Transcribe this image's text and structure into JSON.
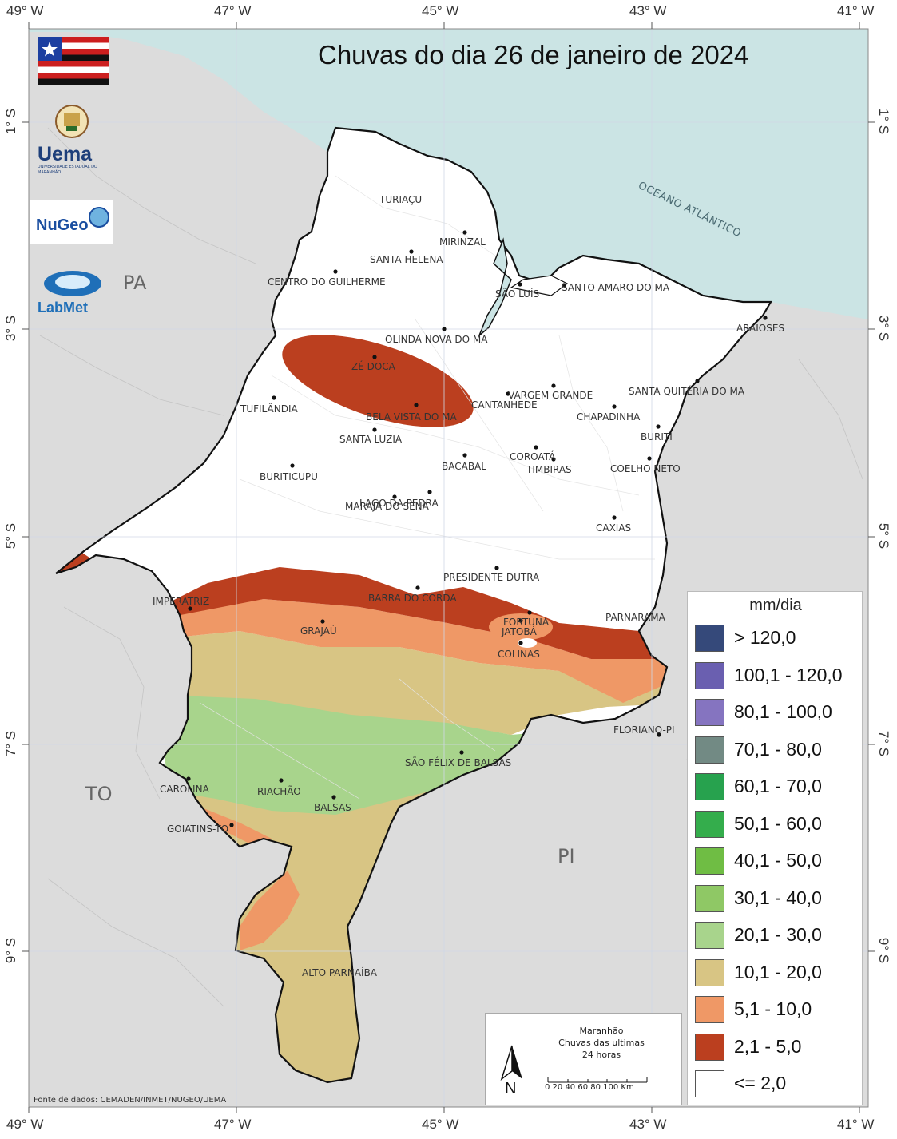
{
  "title": "Chuvas do dia 26 de janeiro de 2024",
  "coordinates": {
    "longitudes": [
      "49° W",
      "47° W",
      "45° W",
      "43° W",
      "41° W"
    ],
    "latitudes": [
      "1° S",
      "3° S",
      "5° S",
      "7° S",
      "9° S"
    ]
  },
  "region_labels": {
    "pa": "PA",
    "to": "TO",
    "pi": "PI"
  },
  "ocean_label": "OCEANO ATLÂNTICO",
  "cities": [
    "TURIAÇU",
    "MIRINZAL",
    "SANTA HELENA",
    "CENTRO DO GUILHERME",
    "SÃO LUÍS",
    "SANTO AMARO DO MA",
    "ARAIOSES",
    "OLINDA NOVA DO MA",
    "ZÉ DOCA",
    "VARGEM GRANDE",
    "CANTANHEDE",
    "SANTA QUITÉRIA DO MA",
    "TUFILÂNDIA",
    "BELA VISTA DO MA",
    "CHAPADINHA",
    "BURITI",
    "SANTA LUZIA",
    "COROATÁ",
    "BACABAL",
    "TIMBIRAS",
    "COELHO NETO",
    "BURITICUPU",
    "LAGO DA PEDRA",
    "MARAJÁ DO SENA",
    "CAXIAS",
    "PRESIDENTE DUTRA",
    "IMPERATRIZ",
    "BARRA DO CORDA",
    "PARNARAMA",
    "FORTUNA",
    "GRAJAÚ",
    "JATOBÁ",
    "COLINAS",
    "FLORIANO-PI",
    "SÃO FÉLIX DE BALSAS",
    "CAROLINA",
    "RIACHÃO",
    "BALSAS",
    "GOIATINS-TO",
    "ALTO PARNAÍBA"
  ],
  "legend": {
    "title": "mm/dia",
    "classes": [
      {
        "label": "> 120,0",
        "color": "#35497a"
      },
      {
        "label": "100,1 - 120,0",
        "color": "#6a5fb0"
      },
      {
        "label": "80,1 - 100,0",
        "color": "#8574c0"
      },
      {
        "label": "70,1 - 80,0",
        "color": "#728a84"
      },
      {
        "label": "60,1 - 70,0",
        "color": "#27a24e"
      },
      {
        "label": "50,1 - 60,0",
        "color": "#34ad4c"
      },
      {
        "label": "40,1 - 50,0",
        "color": "#6fbd44"
      },
      {
        "label": "30,1 - 40,0",
        "color": "#8fc865"
      },
      {
        "label": "20,1 - 30,0",
        "color": "#a8d48c"
      },
      {
        "label": "10,1 - 20,0",
        "color": "#d8c584"
      },
      {
        "label": "5,1 - 10,0",
        "color": "#ef9866"
      },
      {
        "label": "2,1 - 5,0",
        "color": "#bb3f1f"
      },
      {
        "label": "<= 2,0",
        "color": "#ffffff"
      }
    ]
  },
  "inset": {
    "line1": "Maranhão",
    "line2": "Chuvas das ultimas",
    "line3": "24 horas",
    "north": "N",
    "scale": "0  20  40  60  80 100 Km"
  },
  "logos": {
    "uema": "Uema",
    "uema_sub": "UNIVERSIDADE ESTADUAL DO MARANHÃO",
    "nugeo": "NuGeo",
    "labmet": "LabMet"
  },
  "source": "Fonte de dados: CEMADEN/INMET/NUGEO/UEMA",
  "colors": {
    "ocean": "#cbe4e4",
    "land": "#dcdcdc",
    "state": "#ffffff"
  }
}
